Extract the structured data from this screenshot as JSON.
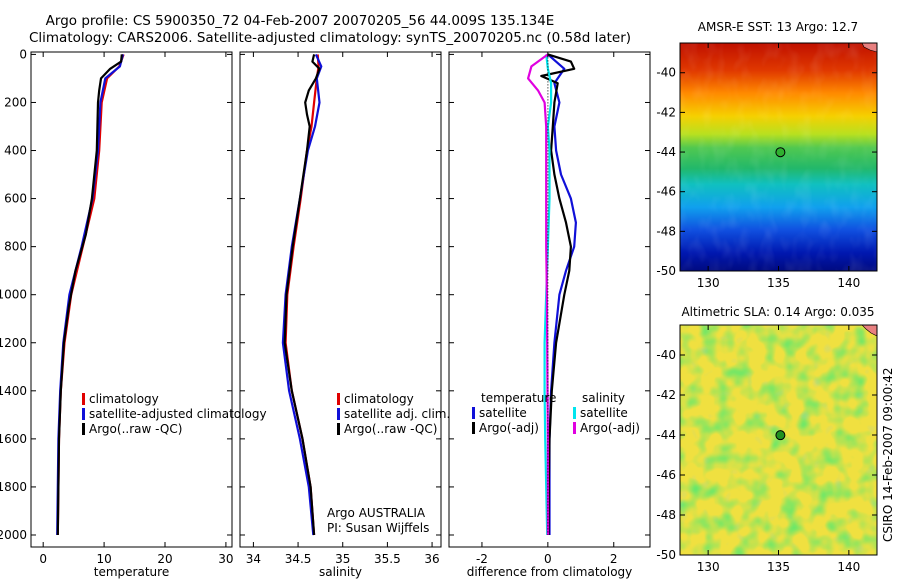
{
  "header": {
    "line1": "Argo profile: CS 5900350_72 04-Feb-2007 20070205_56 44.009S 135.134E",
    "line2": "Climatology: CARS2006. Satellite-adjusted climatology: synTS_20070205.nc (0.58d later)"
  },
  "side_label": "CSIRO 14-Feb-2007 09:00:42",
  "colors": {
    "climatology": "#e00000",
    "satellite": "#1010d8",
    "argo": "#000000",
    "sal_satellite": "#00e5ee",
    "sal_argo": "#e000e0",
    "marker_sst": "#30b030",
    "marker_sla": "#209020"
  },
  "chart_data": [
    {
      "id": "temperature",
      "type": "line",
      "title": "",
      "xlabel": "temperature",
      "ylabel": "",
      "xlim": [
        -2,
        31
      ],
      "ylim": [
        2050,
        -10
      ],
      "xticks": [
        0,
        10,
        20,
        30
      ],
      "yticks": [
        0,
        200,
        400,
        600,
        800,
        1000,
        1200,
        1400,
        1600,
        1800,
        2000
      ],
      "legend": {
        "position": "lower-center",
        "entries": [
          "climatology",
          "satellite-adjusted climatology",
          "Argo(..raw -QC)"
        ]
      },
      "series": [
        {
          "name": "climatology",
          "color": "#e00000",
          "depth": [
            0,
            50,
            100,
            200,
            400,
            600,
            800,
            1000,
            1200,
            1400,
            1600,
            1800,
            2000
          ],
          "values": [
            13.2,
            12.5,
            10.5,
            9.6,
            9.2,
            8.4,
            6.5,
            4.6,
            3.5,
            2.9,
            2.6,
            2.5,
            2.4
          ]
        },
        {
          "name": "satellite-adjusted climatology",
          "color": "#1010d8",
          "depth": [
            0,
            50,
            100,
            200,
            400,
            600,
            800,
            1000,
            1200,
            1400,
            1600,
            1800,
            2000
          ],
          "values": [
            13.1,
            12.6,
            10.2,
            9.4,
            9.0,
            8.1,
            6.3,
            4.3,
            3.3,
            2.8,
            2.5,
            2.4,
            2.3
          ]
        },
        {
          "name": "Argo(..raw -QC)",
          "color": "#000000",
          "depth": [
            0,
            30,
            60,
            100,
            150,
            200,
            300,
            400,
            600,
            750,
            900,
            1050,
            1200,
            1400,
            1600,
            1800,
            2000
          ],
          "values": [
            12.9,
            12.8,
            11.0,
            9.5,
            9.2,
            9.0,
            8.9,
            8.8,
            8.0,
            7.0,
            5.3,
            4.2,
            3.4,
            2.9,
            2.6,
            2.5,
            2.4
          ]
        }
      ]
    },
    {
      "id": "salinity",
      "type": "line",
      "title": "",
      "xlabel": "salinity",
      "ylabel": "",
      "xlim": [
        33.85,
        36.1
      ],
      "ylim": [
        2050,
        -10
      ],
      "xticks": [
        34,
        34.5,
        35,
        35.5,
        36
      ],
      "yticks": [
        0,
        200,
        400,
        600,
        800,
        1000,
        1200,
        1400,
        1600,
        1800,
        2000
      ],
      "legend": {
        "position": "lower-right",
        "entries": [
          "climatology",
          "satellite adj. clim.",
          "Argo(..raw -QC)"
        ]
      },
      "annotations": [
        "Argo AUSTRALIA",
        "PI: Susan Wijffels"
      ],
      "series": [
        {
          "name": "climatology",
          "color": "#e00000",
          "depth": [
            0,
            50,
            100,
            200,
            300,
            400,
            600,
            800,
            1000,
            1200,
            1400,
            1600,
            1800,
            2000
          ],
          "values": [
            34.72,
            34.73,
            34.71,
            34.68,
            34.65,
            34.6,
            34.53,
            34.45,
            34.38,
            34.36,
            34.43,
            34.55,
            34.64,
            34.68
          ]
        },
        {
          "name": "satellite adj. clim.",
          "color": "#1010d8",
          "depth": [
            0,
            50,
            100,
            200,
            300,
            400,
            600,
            800,
            1000,
            1200,
            1400,
            1600,
            1800,
            2000
          ],
          "values": [
            34.7,
            34.76,
            34.71,
            34.74,
            34.69,
            34.61,
            34.52,
            34.43,
            34.36,
            34.33,
            34.4,
            34.52,
            34.62,
            34.67
          ]
        },
        {
          "name": "Argo(..raw -QC)",
          "color": "#000000",
          "depth": [
            0,
            30,
            60,
            100,
            150,
            200,
            250,
            300,
            400,
            600,
            800,
            1000,
            1200,
            1400,
            1600,
            1800,
            2000
          ],
          "values": [
            34.68,
            34.66,
            34.74,
            34.7,
            34.62,
            34.58,
            34.6,
            34.63,
            34.6,
            34.52,
            34.44,
            34.37,
            34.35,
            34.43,
            34.55,
            34.64,
            34.68
          ]
        }
      ]
    },
    {
      "id": "difference",
      "type": "line",
      "title": "",
      "xlabel": "difference from climatology",
      "ylabel": "",
      "xlim": [
        -3,
        3.1
      ],
      "ylim": [
        2050,
        -10
      ],
      "xticks": [
        -2,
        0,
        2
      ],
      "yticks": [
        0,
        200,
        400,
        600,
        800,
        1000,
        1200,
        1400,
        1600,
        1800,
        2000
      ],
      "legend": {
        "position": "lower-center",
        "headers": [
          "temperature",
          "salinity"
        ],
        "entries": [
          "satellite",
          "Argo(-adj)",
          "satellite",
          "Argo(-adj)"
        ]
      },
      "series": [
        {
          "name": "temperature satellite",
          "color": "#1010d8",
          "depth": [
            0,
            60,
            120,
            200,
            300,
            400,
            500,
            600,
            700,
            800,
            900,
            1000,
            1200,
            1400,
            1600,
            1800,
            2000
          ],
          "values": [
            0.0,
            0.5,
            0.2,
            0.35,
            0.2,
            0.25,
            0.4,
            0.7,
            0.85,
            0.8,
            0.55,
            0.35,
            0.2,
            0.1,
            0.05,
            0.05,
            0.05
          ]
        },
        {
          "name": "temperature Argo(-adj)",
          "color": "#000000",
          "depth": [
            0,
            30,
            60,
            90,
            120,
            200,
            300,
            400,
            500,
            600,
            700,
            800,
            900,
            1000,
            1200,
            1400,
            1600,
            1800,
            2000
          ],
          "values": [
            0.0,
            0.7,
            0.8,
            -0.2,
            0.3,
            0.2,
            0.15,
            0.1,
            0.2,
            0.35,
            0.55,
            0.7,
            0.65,
            0.5,
            0.25,
            0.12,
            0.05,
            0.03,
            0.02
          ]
        },
        {
          "name": "salinity satellite",
          "color": "#00e5ee",
          "depth": [
            0,
            60,
            120,
            200,
            300,
            400,
            600,
            800,
            1000,
            1200,
            1400,
            1600,
            1800,
            2000
          ],
          "values": [
            -0.05,
            0.0,
            0.1,
            0.1,
            0.0,
            0.05,
            0.05,
            0.0,
            -0.05,
            -0.1,
            -0.1,
            -0.08,
            -0.05,
            -0.02
          ]
        },
        {
          "name": "salinity Argo(-adj)",
          "color": "#e000e0",
          "depth": [
            0,
            50,
            100,
            150,
            200,
            300,
            400,
            600,
            800,
            1000,
            1200,
            1400,
            1600,
            1800,
            2000
          ],
          "values": [
            0.0,
            -0.5,
            -0.6,
            -0.3,
            -0.1,
            -0.05,
            -0.05,
            -0.05,
            -0.05,
            -0.03,
            -0.02,
            -0.01,
            0.0,
            0.0,
            0.0
          ]
        },
        {
          "name": "zero",
          "color": "#000000",
          "dotted": true,
          "depth": [
            0,
            2000
          ],
          "values": [
            0,
            0
          ]
        }
      ]
    },
    {
      "id": "sst_map",
      "type": "heatmap",
      "title": "AMSR-E SST: 13 Argo: 12.7",
      "xlabel": "",
      "ylabel": "",
      "xlim": [
        128,
        142
      ],
      "ylim": [
        -50,
        -38.5
      ],
      "xticks": [
        130,
        135,
        140
      ],
      "yticks": [
        -40,
        -42,
        -44,
        -46,
        -48,
        -50
      ],
      "marker": {
        "lon": 135.134,
        "lat": -44.009
      }
    },
    {
      "id": "sla_map",
      "type": "heatmap",
      "title": "Altimetric SLA: 0.14 Argo: 0.035",
      "xlabel": "",
      "ylabel": "",
      "xlim": [
        128,
        142
      ],
      "ylim": [
        -50,
        -38.5
      ],
      "xticks": [
        130,
        135,
        140
      ],
      "yticks": [
        -40,
        -42,
        -44,
        -46,
        -48,
        -50
      ],
      "marker": {
        "lon": 135.134,
        "lat": -44.009
      }
    }
  ]
}
